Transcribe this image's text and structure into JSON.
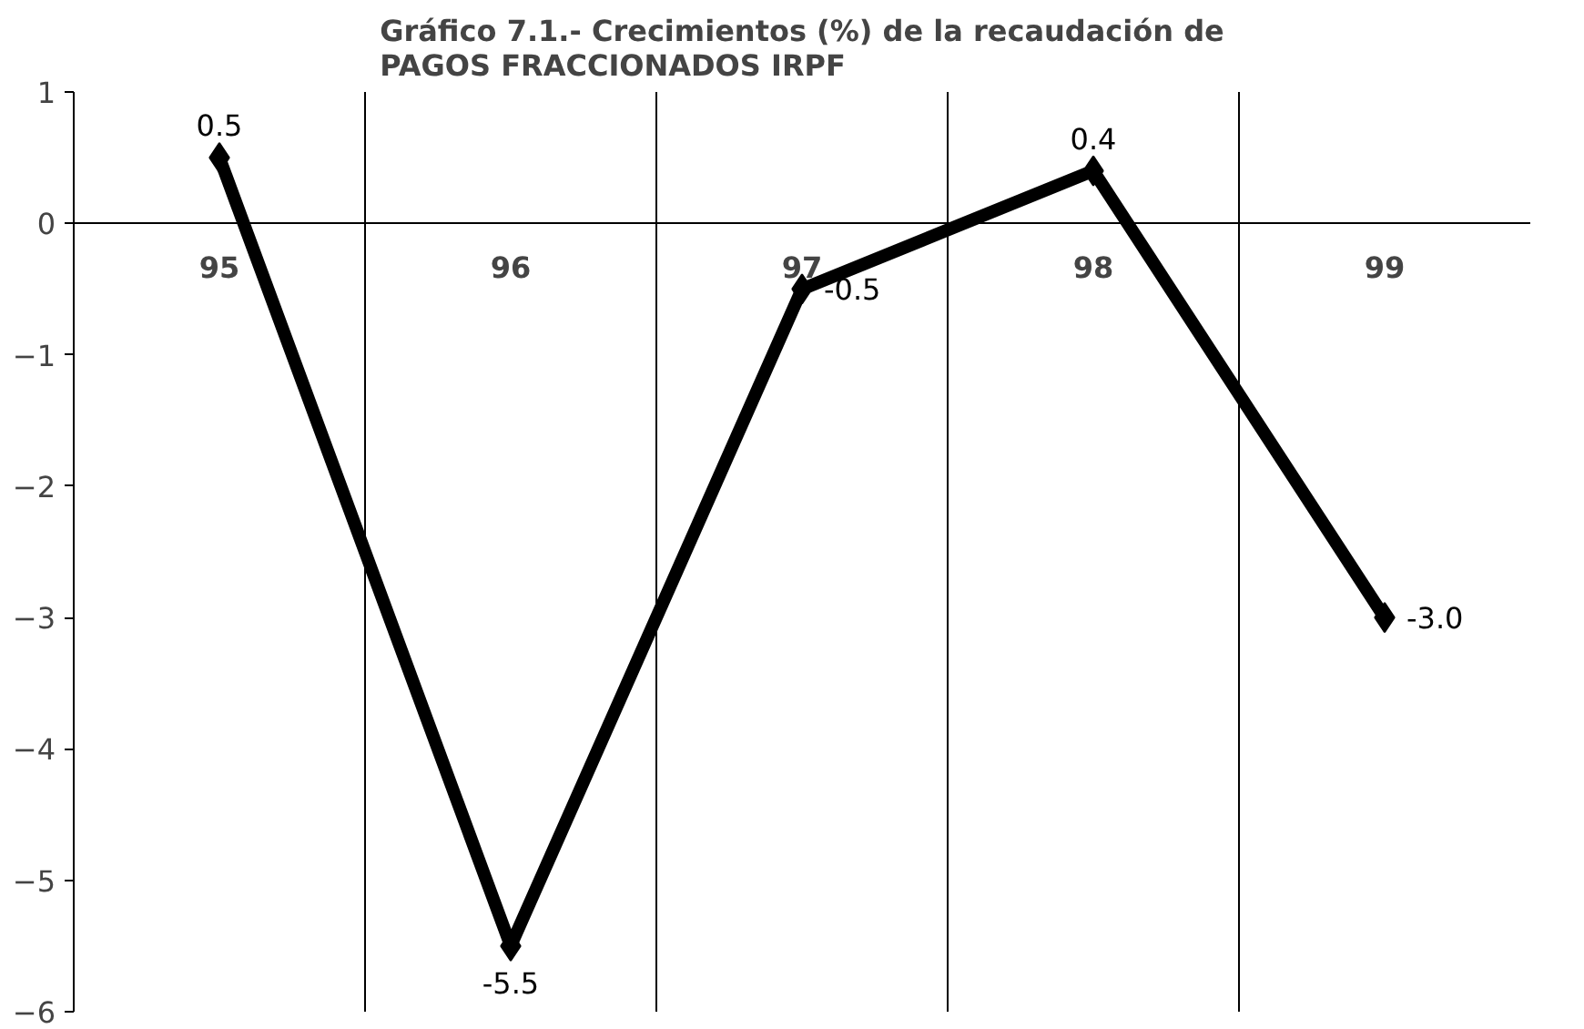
{
  "chart_data": {
    "type": "line",
    "title": "Gráfico 7.1.- Crecimientos (%) de la recaudación de\nPAGOS FRACCIONADOS IRPF",
    "categories": [
      "95",
      "96",
      "97",
      "98",
      "99"
    ],
    "series": [
      {
        "color": "#000000",
        "values": [
          0.5,
          -5.5,
          -0.5,
          0.4,
          -3.0
        ],
        "value_labels": [
          "0.5",
          "-5.5",
          "-0.5",
          "0.4",
          "-3.0"
        ]
      }
    ],
    "ylim": [
      -6,
      1
    ],
    "yticks": [
      -6,
      -5,
      -4,
      -3,
      -2,
      -1,
      0,
      1
    ],
    "grid": "x",
    "marker": "diamond",
    "line_style": "solid"
  }
}
